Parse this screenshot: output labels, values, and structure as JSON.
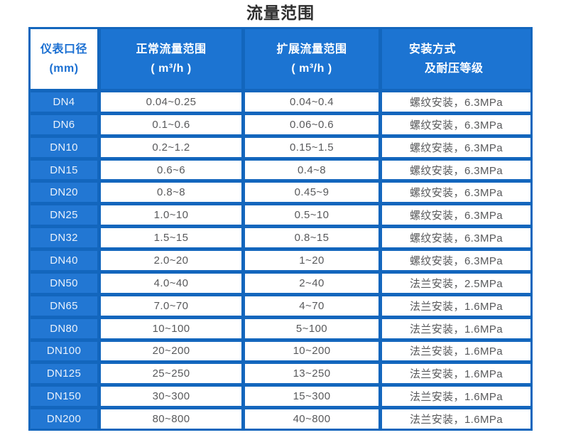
{
  "title": "流量范围",
  "colors": {
    "header_blue": "#1c74d2",
    "frame_blue": "#1366bd",
    "corner_text_blue": "#1a6fd2",
    "value_text_gray": "#58595b"
  },
  "table": {
    "headers": {
      "diameter": {
        "line1": "仪表口径",
        "line2": "(mm)"
      },
      "normal_range": {
        "line1": "正常流量范围",
        "line2": "( m³/h )"
      },
      "extended_range": {
        "line1": "扩展流量范围",
        "line2": "( m³/h )"
      },
      "installation": {
        "line1": "安装方式",
        "line2": "及耐压等级"
      }
    },
    "rows": [
      {
        "dn": "DN4",
        "normal": "0.04~0.25",
        "extended": "0.04~0.4",
        "install": "螺纹安装，6.3MPa"
      },
      {
        "dn": "DN6",
        "normal": "0.1~0.6",
        "extended": "0.06~0.6",
        "install": "螺纹安装，6.3MPa"
      },
      {
        "dn": "DN10",
        "normal": "0.2~1.2",
        "extended": "0.15~1.5",
        "install": "螺纹安装，6.3MPa"
      },
      {
        "dn": "DN15",
        "normal": "0.6~6",
        "extended": "0.4~8",
        "install": "螺纹安装，6.3MPa"
      },
      {
        "dn": "DN20",
        "normal": "0.8~8",
        "extended": "0.45~9",
        "install": "螺纹安装，6.3MPa"
      },
      {
        "dn": "DN25",
        "normal": "1.0~10",
        "extended": "0.5~10",
        "install": "螺纹安装，6.3MPa"
      },
      {
        "dn": "DN32",
        "normal": "1.5~15",
        "extended": "0.8~15",
        "install": "螺纹安装，6.3MPa"
      },
      {
        "dn": "DN40",
        "normal": "2.0~20",
        "extended": "1~20",
        "install": "螺纹安装，6.3MPa"
      },
      {
        "dn": "DN50",
        "normal": "4.0~40",
        "extended": "2~40",
        "install": "法兰安装，2.5MPa"
      },
      {
        "dn": "DN65",
        "normal": "7.0~70",
        "extended": "4~70",
        "install": "法兰安装，1.6MPa"
      },
      {
        "dn": "DN80",
        "normal": "10~100",
        "extended": "5~100",
        "install": "法兰安装，1.6MPa"
      },
      {
        "dn": "DN100",
        "normal": "20~200",
        "extended": "10~200",
        "install": "法兰安装，1.6MPa"
      },
      {
        "dn": "DN125",
        "normal": "25~250",
        "extended": "13~250",
        "install": "法兰安装，1.6MPa"
      },
      {
        "dn": "DN150",
        "normal": "30~300",
        "extended": "15~300",
        "install": "法兰安装，1.6MPa"
      },
      {
        "dn": "DN200",
        "normal": "80~800",
        "extended": "40~800",
        "install": "法兰安装，1.6MPa"
      }
    ]
  }
}
